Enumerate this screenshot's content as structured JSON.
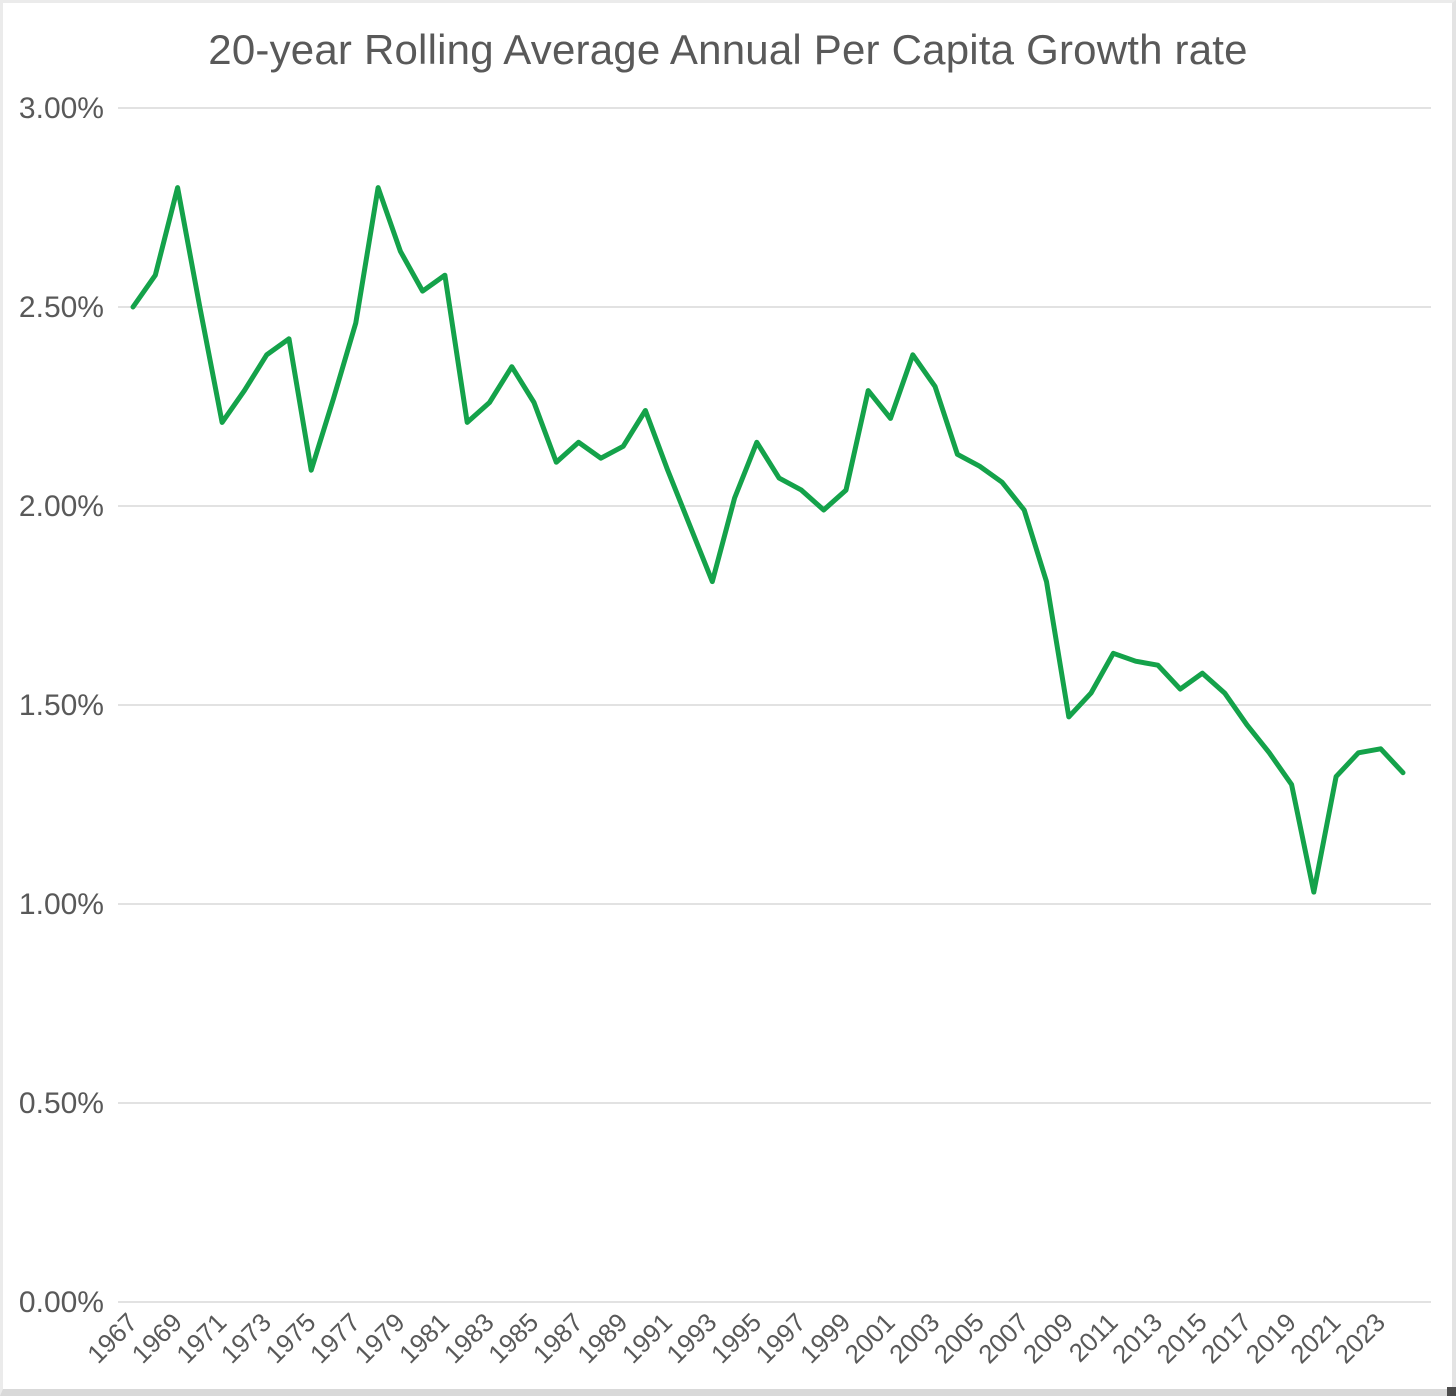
{
  "chart_data": {
    "type": "line",
    "title": "20-year Rolling Average Annual Per Capita Growth rate",
    "xlabel": "",
    "ylabel": "",
    "ylim": [
      0,
      3
    ],
    "grid": "horizontal-only",
    "legend": "none",
    "y_ticks": [
      "3.00%",
      "2.50%",
      "2.00%",
      "1.50%",
      "1.00%",
      "0.50%",
      "0.00%"
    ],
    "y_tick_values": [
      3.0,
      2.5,
      2.0,
      1.5,
      1.0,
      0.5,
      0.0
    ],
    "x_tick_labels": [
      "1967",
      "1969",
      "1971",
      "1973",
      "1975",
      "1977",
      "1979",
      "1981",
      "1983",
      "1985",
      "1987",
      "1989",
      "1991",
      "1993",
      "1995",
      "1997",
      "1999",
      "2001",
      "2003",
      "2005",
      "2007",
      "2009",
      "2011",
      "2013",
      "2015",
      "2017",
      "2019",
      "2021",
      "2023"
    ],
    "x": [
      1967,
      1968,
      1969,
      1970,
      1971,
      1972,
      1973,
      1974,
      1975,
      1976,
      1977,
      1978,
      1979,
      1980,
      1981,
      1982,
      1983,
      1984,
      1985,
      1986,
      1987,
      1988,
      1989,
      1990,
      1991,
      1992,
      1993,
      1994,
      1995,
      1996,
      1997,
      1998,
      1999,
      2000,
      2001,
      2002,
      2003,
      2004,
      2005,
      2006,
      2007,
      2008,
      2009,
      2010,
      2011,
      2012,
      2013,
      2014,
      2015,
      2016,
      2017,
      2018,
      2019,
      2020,
      2021,
      2022,
      2023,
      2024
    ],
    "values": [
      2.5,
      2.58,
      2.8,
      2.5,
      2.21,
      2.29,
      2.38,
      2.42,
      2.09,
      2.27,
      2.46,
      2.8,
      2.64,
      2.54,
      2.58,
      2.21,
      2.26,
      2.35,
      2.26,
      2.11,
      2.16,
      2.12,
      2.15,
      2.24,
      2.09,
      1.95,
      1.81,
      2.02,
      2.16,
      2.07,
      2.04,
      1.99,
      2.04,
      2.29,
      2.22,
      2.38,
      2.3,
      2.13,
      2.1,
      2.06,
      1.99,
      1.81,
      1.47,
      1.53,
      1.63,
      1.61,
      1.6,
      1.54,
      1.58,
      1.53,
      1.45,
      1.38,
      1.3,
      1.03,
      1.32,
      1.38,
      1.39,
      1.33
    ],
    "colors": {
      "line": "#14A24A",
      "gridline": "#D9D9D9",
      "axis_text": "#595959",
      "title_text": "#595959",
      "background": "#FFFFFF"
    }
  }
}
